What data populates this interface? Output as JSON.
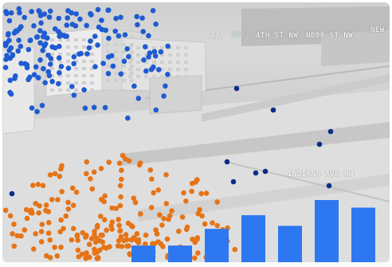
{
  "map_labels": {
    "aa": "AA",
    "faint": "???",
    "street_top": "4TH ST NW",
    "street_top2": "NB00 ST NW",
    "new": "NEW",
    "street_lower": "INDIANA AVE NW"
  },
  "colors": {
    "blue_points": "#1f5bd1",
    "dark_points": "#0b2c8a",
    "orange_points": "#e57417",
    "bars": "#2d78f0"
  },
  "bar_levels": [
    0.22,
    0.22,
    0.44,
    0.62,
    0.48,
    0.82,
    0.72
  ]
}
